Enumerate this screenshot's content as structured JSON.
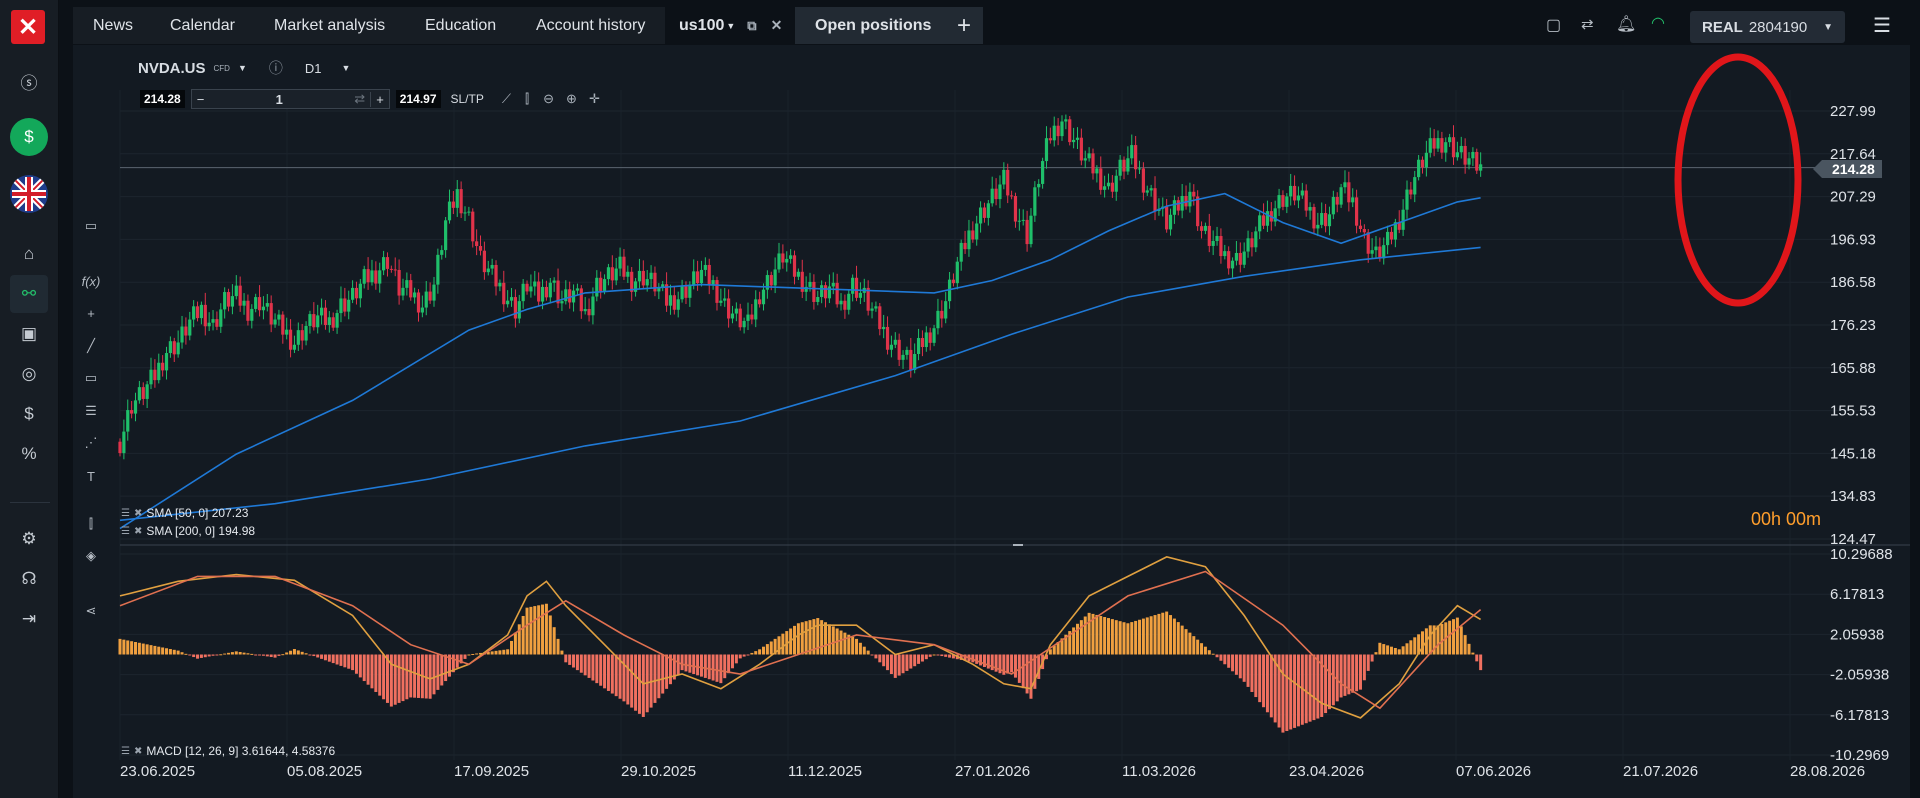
{
  "nav": {
    "tabs": [
      {
        "label": "News"
      },
      {
        "label": "Calendar"
      },
      {
        "label": "Market analysis"
      },
      {
        "label": "Education"
      },
      {
        "label": "Account history"
      },
      {
        "label": "us100"
      },
      {
        "label": "Open positions"
      }
    ],
    "add_tab": "+"
  },
  "account": {
    "type": "REAL",
    "number": "2804190"
  },
  "instrument": {
    "symbol": "NVDA.US",
    "cfd": "CFD",
    "timeframe": "D1",
    "sell_price": "214.28",
    "buy_price": "214.97",
    "volume": "1",
    "sltp": "SL/TP"
  },
  "indicators": {
    "sma50": "SMA [50, 0] 207.23",
    "sma200": "SMA [200, 0] 194.98",
    "macd": "MACD [12, 26, 9] 3.61644, 4.58376"
  },
  "timer": "00h 00m",
  "current_price": "214.28",
  "colors": {
    "bull": "#1fbf6a",
    "bear": "#e0334a",
    "sma": "#1f79d6",
    "macd_line": "#e0a040",
    "signal_line": "#e07050",
    "hist_pos": "#f0a040",
    "hist_neg": "#f07060",
    "highlight": "#e0161a"
  },
  "chart_data": {
    "type": "candlestick",
    "price_axis": [
      "227.99",
      "217.64",
      "207.29",
      "196.93",
      "186.58",
      "176.23",
      "165.88",
      "155.53",
      "145.18",
      "134.83",
      "124.47"
    ],
    "macd_axis": [
      "10.29688",
      "6.17813",
      "2.05938",
      "-2.05938",
      "-6.17813",
      "-10.2969"
    ],
    "date_axis": [
      "23.06.2025",
      "05.08.2025",
      "17.09.2025",
      "29.10.2025",
      "11.12.2025",
      "27.01.2026",
      "11.03.2026",
      "23.04.2026",
      "07.06.2026",
      "21.07.2026",
      "28.08.2026"
    ],
    "ylim": [
      124.47,
      230.0
    ],
    "close_path": [
      [
        0,
        148
      ],
      [
        3,
        157
      ],
      [
        6,
        160
      ],
      [
        9,
        164
      ],
      [
        12,
        170
      ],
      [
        15,
        172
      ],
      [
        18,
        177
      ],
      [
        21,
        180
      ],
      [
        24,
        176
      ],
      [
        27,
        182
      ],
      [
        30,
        183
      ],
      [
        33,
        180
      ],
      [
        36,
        182
      ],
      [
        39,
        178
      ],
      [
        42,
        175
      ],
      [
        45,
        172
      ],
      [
        48,
        176
      ],
      [
        51,
        178
      ],
      [
        54,
        177
      ],
      [
        57,
        181
      ],
      [
        60,
        183
      ],
      [
        63,
        187
      ],
      [
        66,
        189
      ],
      [
        69,
        192
      ],
      [
        72,
        185
      ],
      [
        75,
        184
      ],
      [
        78,
        181
      ],
      [
        81,
        186
      ],
      [
        84,
        201
      ],
      [
        87,
        208
      ],
      [
        90,
        202
      ],
      [
        93,
        192
      ],
      [
        96,
        188
      ],
      [
        99,
        184
      ],
      [
        102,
        180
      ],
      [
        105,
        186
      ],
      [
        108,
        183
      ],
      [
        111,
        187
      ],
      [
        114,
        182
      ],
      [
        117,
        184
      ],
      [
        120,
        179
      ],
      [
        123,
        186
      ],
      [
        126,
        188
      ],
      [
        129,
        190
      ],
      [
        132,
        187
      ],
      [
        135,
        188
      ],
      [
        138,
        186
      ],
      [
        141,
        182
      ],
      [
        144,
        183
      ],
      [
        147,
        186
      ],
      [
        150,
        189
      ],
      [
        153,
        186
      ],
      [
        156,
        181
      ],
      [
        159,
        178
      ],
      [
        162,
        176
      ],
      [
        165,
        184
      ],
      [
        168,
        188
      ],
      [
        171,
        193
      ],
      [
        174,
        189
      ],
      [
        177,
        186
      ],
      [
        180,
        183
      ],
      [
        183,
        185
      ],
      [
        186,
        181
      ],
      [
        189,
        186
      ],
      [
        192,
        183
      ],
      [
        195,
        178
      ],
      [
        198,
        173
      ],
      [
        201,
        170
      ],
      [
        204,
        167
      ],
      [
        207,
        172
      ],
      [
        210,
        176
      ],
      [
        213,
        182
      ],
      [
        216,
        191
      ],
      [
        219,
        198
      ],
      [
        222,
        203
      ],
      [
        225,
        207
      ],
      [
        228,
        211
      ],
      [
        231,
        204
      ],
      [
        234,
        198
      ],
      [
        237,
        212
      ],
      [
        240,
        222
      ],
      [
        243,
        226
      ],
      [
        246,
        221
      ],
      [
        249,
        216
      ],
      [
        252,
        213
      ],
      [
        255,
        209
      ],
      [
        258,
        214
      ],
      [
        261,
        217
      ],
      [
        264,
        211
      ],
      [
        267,
        206
      ],
      [
        270,
        201
      ],
      [
        273,
        205
      ],
      [
        276,
        209
      ],
      [
        279,
        199
      ],
      [
        282,
        196
      ],
      [
        285,
        193
      ],
      [
        288,
        192
      ],
      [
        291,
        195
      ],
      [
        294,
        200
      ],
      [
        297,
        204
      ],
      [
        300,
        207
      ],
      [
        303,
        208
      ],
      [
        306,
        205
      ],
      [
        309,
        201
      ],
      [
        312,
        203
      ],
      [
        315,
        209
      ],
      [
        318,
        206
      ],
      [
        321,
        197
      ],
      [
        324,
        193
      ],
      [
        327,
        196
      ],
      [
        330,
        202
      ],
      [
        333,
        210
      ],
      [
        336,
        216
      ],
      [
        339,
        220
      ],
      [
        342,
        221
      ],
      [
        345,
        218
      ],
      [
        348,
        216
      ],
      [
        351,
        214
      ]
    ],
    "sma50_values": [
      [
        0,
        127
      ],
      [
        30,
        145
      ],
      [
        60,
        158
      ],
      [
        90,
        175
      ],
      [
        105,
        180
      ],
      [
        120,
        184
      ],
      [
        150,
        186
      ],
      [
        180,
        185
      ],
      [
        210,
        184
      ],
      [
        225,
        187
      ],
      [
        240,
        192
      ],
      [
        255,
        199
      ],
      [
        270,
        205
      ],
      [
        285,
        208
      ],
      [
        300,
        201
      ],
      [
        315,
        196
      ],
      [
        330,
        201
      ],
      [
        345,
        206
      ],
      [
        351,
        207
      ]
    ],
    "sma200_values": [
      [
        0,
        129
      ],
      [
        40,
        133
      ],
      [
        80,
        139
      ],
      [
        120,
        147
      ],
      [
        160,
        153
      ],
      [
        200,
        164
      ],
      [
        230,
        174
      ],
      [
        260,
        183
      ],
      [
        290,
        188
      ],
      [
        320,
        192
      ],
      [
        351,
        195
      ]
    ],
    "macd_values": [
      [
        0,
        6
      ],
      [
        15,
        7.5
      ],
      [
        30,
        8.2
      ],
      [
        45,
        7.6
      ],
      [
        60,
        4
      ],
      [
        70,
        -1
      ],
      [
        80,
        -2.5
      ],
      [
        90,
        -1
      ],
      [
        100,
        2
      ],
      [
        105,
        6
      ],
      [
        110,
        7.5
      ],
      [
        115,
        5
      ],
      [
        125,
        1
      ],
      [
        135,
        -3
      ],
      [
        145,
        -2
      ],
      [
        155,
        -3.5
      ],
      [
        165,
        -1
      ],
      [
        175,
        2
      ],
      [
        180,
        3
      ],
      [
        190,
        3
      ],
      [
        200,
        0
      ],
      [
        210,
        1
      ],
      [
        220,
        -1
      ],
      [
        228,
        -3
      ],
      [
        235,
        -3.5
      ],
      [
        240,
        1
      ],
      [
        250,
        6
      ],
      [
        260,
        8
      ],
      [
        270,
        10
      ],
      [
        280,
        9
      ],
      [
        290,
        4
      ],
      [
        300,
        -2
      ],
      [
        310,
        -5
      ],
      [
        320,
        -6.5
      ],
      [
        330,
        -3
      ],
      [
        338,
        2
      ],
      [
        345,
        5
      ],
      [
        351,
        3.6
      ]
    ],
    "signal_values": [
      [
        0,
        5
      ],
      [
        20,
        8
      ],
      [
        40,
        8
      ],
      [
        60,
        5
      ],
      [
        75,
        1
      ],
      [
        90,
        -1
      ],
      [
        105,
        3
      ],
      [
        115,
        5.5
      ],
      [
        130,
        2
      ],
      [
        145,
        -1
      ],
      [
        160,
        -2
      ],
      [
        175,
        0
      ],
      [
        190,
        2
      ],
      [
        210,
        1
      ],
      [
        230,
        -2
      ],
      [
        245,
        2
      ],
      [
        260,
        6
      ],
      [
        280,
        8.5
      ],
      [
        300,
        3
      ],
      [
        315,
        -3
      ],
      [
        325,
        -5.5
      ],
      [
        340,
        1
      ],
      [
        351,
        4.6
      ]
    ]
  }
}
